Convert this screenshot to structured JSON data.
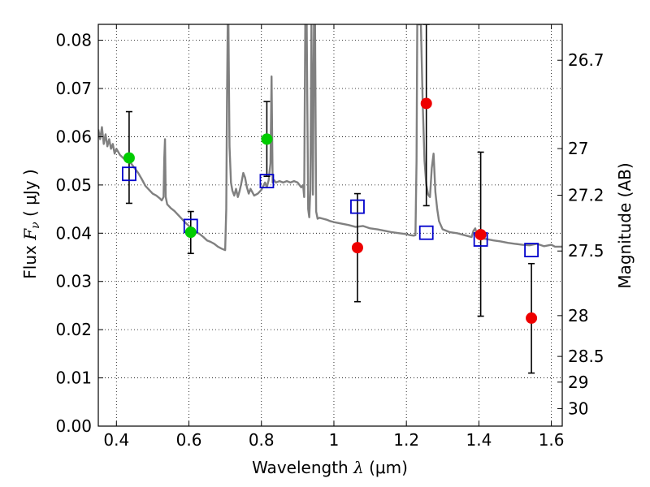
{
  "chart_data": {
    "type": "scatter",
    "xlabel_main": "Wavelength",
    "xlabel_symbol": "λ",
    "xlabel_unit": "(μm)",
    "ylabel_main": "Flux",
    "ylabel_symbol": "F",
    "ylabel_subscript": "ν",
    "ylabel_unit": "( μJy )",
    "y2label": "Magnitude (AB)",
    "xlim": [
      0.35,
      1.63
    ],
    "ylim": [
      0.0,
      0.0833
    ],
    "grid": true,
    "xticks": [
      {
        "value": 0.4,
        "label": "0.4"
      },
      {
        "value": 0.6,
        "label": "0.6"
      },
      {
        "value": 0.8,
        "label": "0.8"
      },
      {
        "value": 1.0,
        "label": "1"
      },
      {
        "value": 1.2,
        "label": "1.2"
      },
      {
        "value": 1.4,
        "label": "1.4"
      },
      {
        "value": 1.6,
        "label": "1.6"
      }
    ],
    "yticks": [
      {
        "value": 0.0,
        "label": "0.00"
      },
      {
        "value": 0.01,
        "label": "0.01"
      },
      {
        "value": 0.02,
        "label": "0.02"
      },
      {
        "value": 0.03,
        "label": "0.03"
      },
      {
        "value": 0.04,
        "label": "0.04"
      },
      {
        "value": 0.05,
        "label": "0.05"
      },
      {
        "value": 0.06,
        "label": "0.06"
      },
      {
        "value": 0.07,
        "label": "0.07"
      },
      {
        "value": 0.08,
        "label": "0.08"
      }
    ],
    "y2ticks": [
      {
        "mag": 26.7,
        "label": "26.7"
      },
      {
        "mag": 27.0,
        "label": "27"
      },
      {
        "mag": 27.2,
        "label": "27.2"
      },
      {
        "mag": 27.5,
        "label": "27.5"
      },
      {
        "mag": 28.0,
        "label": "28"
      },
      {
        "mag": 28.5,
        "label": "28.5"
      },
      {
        "mag": 29.0,
        "label": "29"
      },
      {
        "mag": 30.0,
        "label": "30"
      }
    ],
    "sed_model": {
      "color": "#808080",
      "points": [
        [
          0.35,
          0.0615
        ],
        [
          0.355,
          0.0595
        ],
        [
          0.36,
          0.062
        ],
        [
          0.365,
          0.0585
        ],
        [
          0.37,
          0.0605
        ],
        [
          0.375,
          0.058
        ],
        [
          0.38,
          0.0595
        ],
        [
          0.385,
          0.0575
        ],
        [
          0.39,
          0.0585
        ],
        [
          0.395,
          0.0565
        ],
        [
          0.4,
          0.0575
        ],
        [
          0.41,
          0.0562
        ],
        [
          0.42,
          0.0555
        ],
        [
          0.43,
          0.0548
        ],
        [
          0.44,
          0.0545
        ],
        [
          0.45,
          0.0535
        ],
        [
          0.46,
          0.0525
        ],
        [
          0.47,
          0.0512
        ],
        [
          0.48,
          0.0498
        ],
        [
          0.49,
          0.049
        ],
        [
          0.5,
          0.0482
        ],
        [
          0.51,
          0.0478
        ],
        [
          0.52,
          0.0472
        ],
        [
          0.525,
          0.0468
        ],
        [
          0.53,
          0.0475
        ],
        [
          0.532,
          0.0555
        ],
        [
          0.534,
          0.0595
        ],
        [
          0.536,
          0.0475
        ],
        [
          0.54,
          0.046
        ],
        [
          0.55,
          0.0452
        ],
        [
          0.56,
          0.0446
        ],
        [
          0.57,
          0.0438
        ],
        [
          0.58,
          0.043
        ],
        [
          0.59,
          0.0422
        ],
        [
          0.6,
          0.0415
        ],
        [
          0.61,
          0.0408
        ],
        [
          0.62,
          0.0402
        ],
        [
          0.63,
          0.0398
        ],
        [
          0.64,
          0.0392
        ],
        [
          0.65,
          0.0385
        ],
        [
          0.66,
          0.0382
        ],
        [
          0.67,
          0.0378
        ],
        [
          0.68,
          0.0372
        ],
        [
          0.69,
          0.0368
        ],
        [
          0.7,
          0.0365
        ],
        [
          0.703,
          0.045
        ],
        [
          0.705,
          0.067
        ],
        [
          0.707,
          0.0833
        ],
        [
          0.709,
          0.0833
        ],
        [
          0.712,
          0.058
        ],
        [
          0.716,
          0.0505
        ],
        [
          0.72,
          0.0488
        ],
        [
          0.725,
          0.0478
        ],
        [
          0.73,
          0.0492
        ],
        [
          0.735,
          0.0475
        ],
        [
          0.74,
          0.0488
        ],
        [
          0.745,
          0.0505
        ],
        [
          0.75,
          0.0525
        ],
        [
          0.755,
          0.0515
        ],
        [
          0.76,
          0.0495
        ],
        [
          0.765,
          0.0482
        ],
        [
          0.77,
          0.0492
        ],
        [
          0.775,
          0.0485
        ],
        [
          0.78,
          0.0478
        ],
        [
          0.79,
          0.0482
        ],
        [
          0.8,
          0.049
        ],
        [
          0.81,
          0.0505
        ],
        [
          0.815,
          0.0495
        ],
        [
          0.82,
          0.051
        ],
        [
          0.825,
          0.0545
        ],
        [
          0.828,
          0.0725
        ],
        [
          0.831,
          0.0505
        ],
        [
          0.835,
          0.051
        ],
        [
          0.84,
          0.0505
        ],
        [
          0.85,
          0.0508
        ],
        [
          0.86,
          0.0505
        ],
        [
          0.87,
          0.0508
        ],
        [
          0.88,
          0.0505
        ],
        [
          0.89,
          0.0508
        ],
        [
          0.9,
          0.0505
        ],
        [
          0.905,
          0.05
        ],
        [
          0.91,
          0.0495
        ],
        [
          0.915,
          0.05
        ],
        [
          0.918,
          0.0475
        ],
        [
          0.921,
          0.0833
        ],
        [
          0.925,
          0.0833
        ],
        [
          0.929,
          0.045
        ],
        [
          0.932,
          0.0433
        ],
        [
          0.935,
          0.049
        ],
        [
          0.938,
          0.0833
        ],
        [
          0.942,
          0.048
        ],
        [
          0.945,
          0.0833
        ],
        [
          0.948,
          0.0833
        ],
        [
          0.951,
          0.0445
        ],
        [
          0.955,
          0.043
        ],
        [
          0.96,
          0.0432
        ],
        [
          0.97,
          0.043
        ],
        [
          0.98,
          0.0428
        ],
        [
          0.99,
          0.0425
        ],
        [
          1.0,
          0.0423
        ],
        [
          1.02,
          0.042
        ],
        [
          1.04,
          0.0417
        ],
        [
          1.06,
          0.0413
        ],
        [
          1.08,
          0.0415
        ],
        [
          1.1,
          0.041
        ],
        [
          1.12,
          0.0408
        ],
        [
          1.14,
          0.0405
        ],
        [
          1.16,
          0.0402
        ],
        [
          1.18,
          0.04
        ],
        [
          1.2,
          0.0398
        ],
        [
          1.21,
          0.0396
        ],
        [
          1.22,
          0.0395
        ],
        [
          1.225,
          0.0396
        ],
        [
          1.228,
          0.055
        ],
        [
          1.23,
          0.0833
        ],
        [
          1.24,
          0.0833
        ],
        [
          1.245,
          0.067
        ],
        [
          1.25,
          0.055
        ],
        [
          1.255,
          0.05
        ],
        [
          1.26,
          0.048
        ],
        [
          1.265,
          0.0475
        ],
        [
          1.27,
          0.0535
        ],
        [
          1.275,
          0.0565
        ],
        [
          1.28,
          0.0485
        ],
        [
          1.285,
          0.045
        ],
        [
          1.29,
          0.0425
        ],
        [
          1.3,
          0.0408
        ],
        [
          1.32,
          0.0402
        ],
        [
          1.34,
          0.04
        ],
        [
          1.36,
          0.0396
        ],
        [
          1.38,
          0.0392
        ],
        [
          1.385,
          0.0405
        ],
        [
          1.39,
          0.041
        ],
        [
          1.395,
          0.0395
        ],
        [
          1.4,
          0.039
        ],
        [
          1.42,
          0.0388
        ],
        [
          1.44,
          0.0385
        ],
        [
          1.46,
          0.0383
        ],
        [
          1.48,
          0.038
        ],
        [
          1.5,
          0.0378
        ],
        [
          1.52,
          0.0376
        ],
        [
          1.54,
          0.0375
        ],
        [
          1.56,
          0.0378
        ],
        [
          1.58,
          0.0373
        ],
        [
          1.6,
          0.0376
        ],
        [
          1.61,
          0.0372
        ],
        [
          1.63,
          0.0372
        ]
      ]
    },
    "model_photometry": {
      "marker": "open-square",
      "color": "#0000cc",
      "points": [
        [
          0.435,
          0.0523
        ],
        [
          0.605,
          0.0415
        ],
        [
          0.815,
          0.0508
        ],
        [
          1.065,
          0.0455
        ],
        [
          1.255,
          0.0401
        ],
        [
          1.405,
          0.0387
        ],
        [
          1.545,
          0.0365
        ]
      ]
    },
    "observed_detections": {
      "marker": "filled-circle",
      "color": "#00cc00",
      "points": [
        {
          "x": 0.435,
          "y": 0.0556,
          "ylo": 0.0462,
          "yhi": 0.0652
        },
        {
          "x": 0.605,
          "y": 0.0402,
          "ylo": 0.0358,
          "yhi": 0.0445
        },
        {
          "x": 0.815,
          "y": 0.0595,
          "ylo": 0.0518,
          "yhi": 0.0673
        }
      ]
    },
    "observed_other": {
      "marker": "filled-circle",
      "color": "#ee0000",
      "points": [
        {
          "x": 1.065,
          "y": 0.037,
          "ylo": 0.0258,
          "yhi": 0.0482
        },
        {
          "x": 1.255,
          "y": 0.0669,
          "ylo": 0.0457,
          "yhi": 0.0833
        },
        {
          "x": 1.405,
          "y": 0.0397,
          "ylo": 0.0228,
          "yhi": 0.0568
        },
        {
          "x": 1.545,
          "y": 0.0224,
          "ylo": 0.011,
          "yhi": 0.0337
        }
      ]
    }
  }
}
